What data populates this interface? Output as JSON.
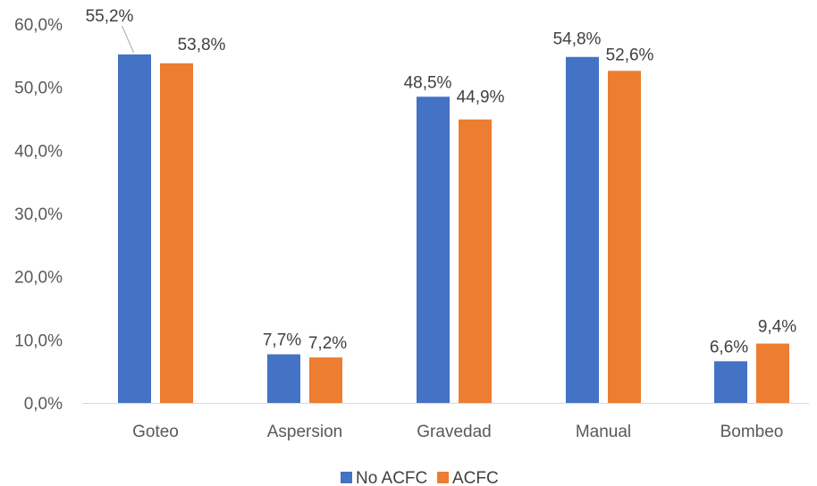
{
  "chart_data": {
    "type": "bar",
    "categories": [
      "Goteo",
      "Aspersion",
      "Gravedad",
      "Manual",
      "Bombeo"
    ],
    "series": [
      {
        "name": "No ACFC",
        "values": [
          55.2,
          7.7,
          48.5,
          54.8,
          6.6
        ],
        "color": "#4472C4"
      },
      {
        "name": "ACFC",
        "values": [
          53.8,
          7.2,
          44.9,
          52.6,
          9.4
        ],
        "color": "#ED7D31"
      }
    ],
    "data_labels": [
      [
        "55,2%",
        "7,7%",
        "48,5%",
        "54,8%",
        "6,6%"
      ],
      [
        "53,8%",
        "7,2%",
        "44,9%",
        "52,6%",
        "9,4%"
      ]
    ],
    "y_ticks": [
      "0,0%",
      "10,0%",
      "20,0%",
      "30,0%",
      "40,0%",
      "50,0%",
      "60,0%"
    ],
    "ylim": [
      0,
      60
    ],
    "grid": false,
    "legend_position": "bottom",
    "title": "",
    "xlabel": "",
    "ylabel": "",
    "axis_color": "#D9D9D9"
  }
}
